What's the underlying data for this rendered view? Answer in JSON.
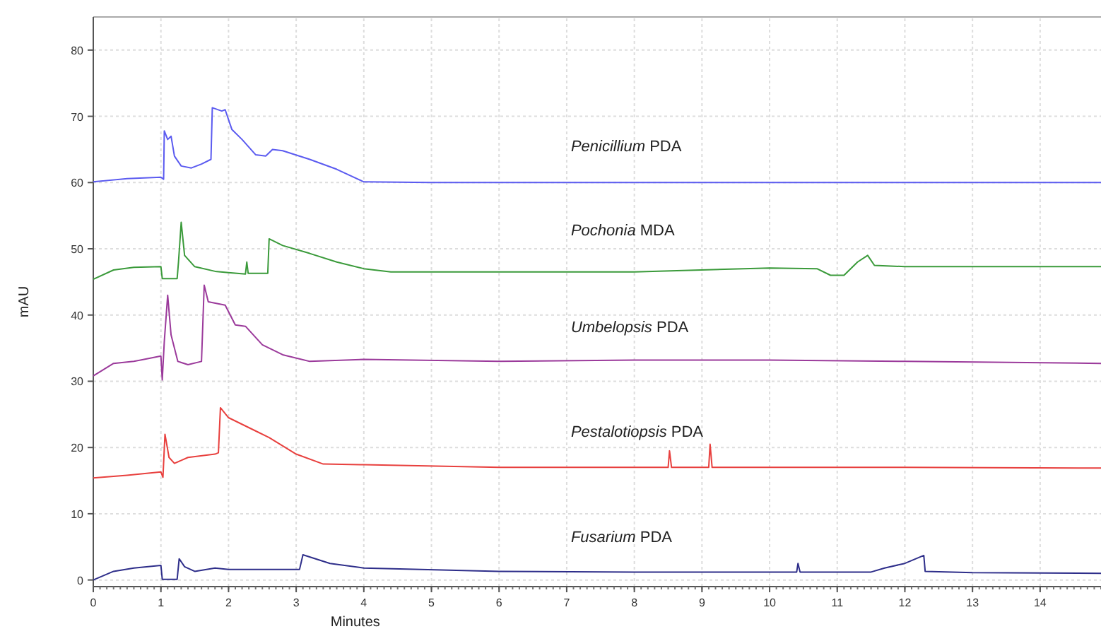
{
  "chart_data": {
    "type": "line",
    "xlabel": "Minutes",
    "ylabel": "mAU",
    "xlim": [
      0,
      14.9
    ],
    "ylim": [
      -1,
      85
    ],
    "xticks": [
      0,
      1,
      2,
      3,
      4,
      5,
      6,
      7,
      8,
      9,
      10,
      11,
      12,
      13,
      14
    ],
    "yticks": [
      0,
      10,
      20,
      30,
      40,
      50,
      60,
      70,
      80
    ],
    "grid": true,
    "marker": "none",
    "line_style": "solid",
    "series": [
      {
        "name": "Penicillium PDA",
        "color": "#5b5bf0",
        "x": [
          0,
          0.5,
          1.0,
          1.04,
          1.05,
          1.1,
          1.15,
          1.2,
          1.3,
          1.45,
          1.6,
          1.74,
          1.76,
          1.9,
          1.95,
          2.05,
          2.2,
          2.4,
          2.55,
          2.65,
          2.8,
          3.2,
          3.6,
          4.0,
          5,
          7,
          10,
          14.9
        ],
        "values": [
          60.1,
          60.6,
          60.8,
          60.5,
          67.8,
          66.5,
          67,
          64,
          62.5,
          62.2,
          62.8,
          63.5,
          71.3,
          70.8,
          71,
          68,
          66.5,
          64.2,
          64,
          65,
          64.8,
          63.5,
          62,
          60.1,
          60,
          60,
          60,
          60
        ]
      },
      {
        "name": "Pochonia MDA",
        "color": "#3a9a3a",
        "x": [
          0,
          0.3,
          0.6,
          1.0,
          1.02,
          1.24,
          1.26,
          1.3,
          1.35,
          1.5,
          1.8,
          2.0,
          2.25,
          2.27,
          2.29,
          2.58,
          2.6,
          2.8,
          3.2,
          3.6,
          4.0,
          4.4,
          6,
          8,
          10,
          10.7,
          10.9,
          11.1,
          11.3,
          11.45,
          11.55,
          12,
          14.9
        ],
        "values": [
          45.4,
          46.8,
          47.2,
          47.3,
          45.5,
          45.5,
          48,
          54,
          49,
          47.3,
          46.6,
          46.4,
          46.2,
          48,
          46.3,
          46.3,
          51.5,
          50.5,
          49.3,
          48,
          47,
          46.5,
          46.5,
          46.5,
          47.1,
          47,
          46,
          46,
          48,
          49,
          47.5,
          47.3,
          47.3
        ]
      },
      {
        "name": "Umbelopsis PDA",
        "color": "#9b3a9b",
        "x": [
          0,
          0.3,
          0.6,
          1.0,
          1.02,
          1.05,
          1.1,
          1.15,
          1.25,
          1.4,
          1.6,
          1.64,
          1.7,
          1.95,
          2.1,
          2.25,
          2.5,
          2.8,
          3.2,
          4,
          6,
          8,
          10,
          12,
          14.9
        ],
        "values": [
          30.8,
          32.7,
          33,
          33.8,
          30.2,
          36,
          43,
          37,
          33,
          32.5,
          33,
          44.5,
          42,
          41.5,
          38.5,
          38.3,
          35.5,
          34,
          33,
          33.3,
          33,
          33.2,
          33.2,
          33,
          32.7
        ]
      },
      {
        "name": "Pestalotiopsis PDA",
        "color": "#e8403e",
        "x": [
          0,
          0.5,
          1.0,
          1.03,
          1.06,
          1.12,
          1.2,
          1.4,
          1.8,
          1.85,
          1.88,
          2.0,
          2.4,
          2.6,
          3,
          3.4,
          4,
          6,
          8.5,
          8.52,
          8.55,
          9.1,
          9.12,
          9.15,
          12,
          14.9
        ],
        "values": [
          15.4,
          15.8,
          16.3,
          15.5,
          22,
          18.5,
          17.6,
          18.5,
          19,
          19.2,
          26,
          24.5,
          22.5,
          21.5,
          19,
          17.5,
          17.4,
          17,
          17,
          19.5,
          17,
          17,
          20.5,
          17,
          17,
          16.9
        ]
      },
      {
        "name": "Fusarium PDA",
        "color": "#2e2e8a",
        "x": [
          0,
          0.3,
          0.6,
          1.0,
          1.02,
          1.24,
          1.27,
          1.35,
          1.5,
          1.8,
          2.0,
          2.2,
          3.05,
          3.1,
          3.5,
          4,
          6,
          8,
          10.4,
          10.42,
          10.45,
          11.5,
          11.7,
          12,
          12.28,
          12.3,
          13,
          14.9
        ],
        "values": [
          0,
          1.3,
          1.8,
          2.2,
          0.1,
          0.1,
          3.2,
          2,
          1.3,
          1.8,
          1.6,
          1.6,
          1.6,
          3.8,
          2.5,
          1.8,
          1.3,
          1.2,
          1.2,
          2.5,
          1.2,
          1.2,
          1.8,
          2.5,
          3.7,
          1.3,
          1.1,
          1.0
        ]
      }
    ]
  }
}
